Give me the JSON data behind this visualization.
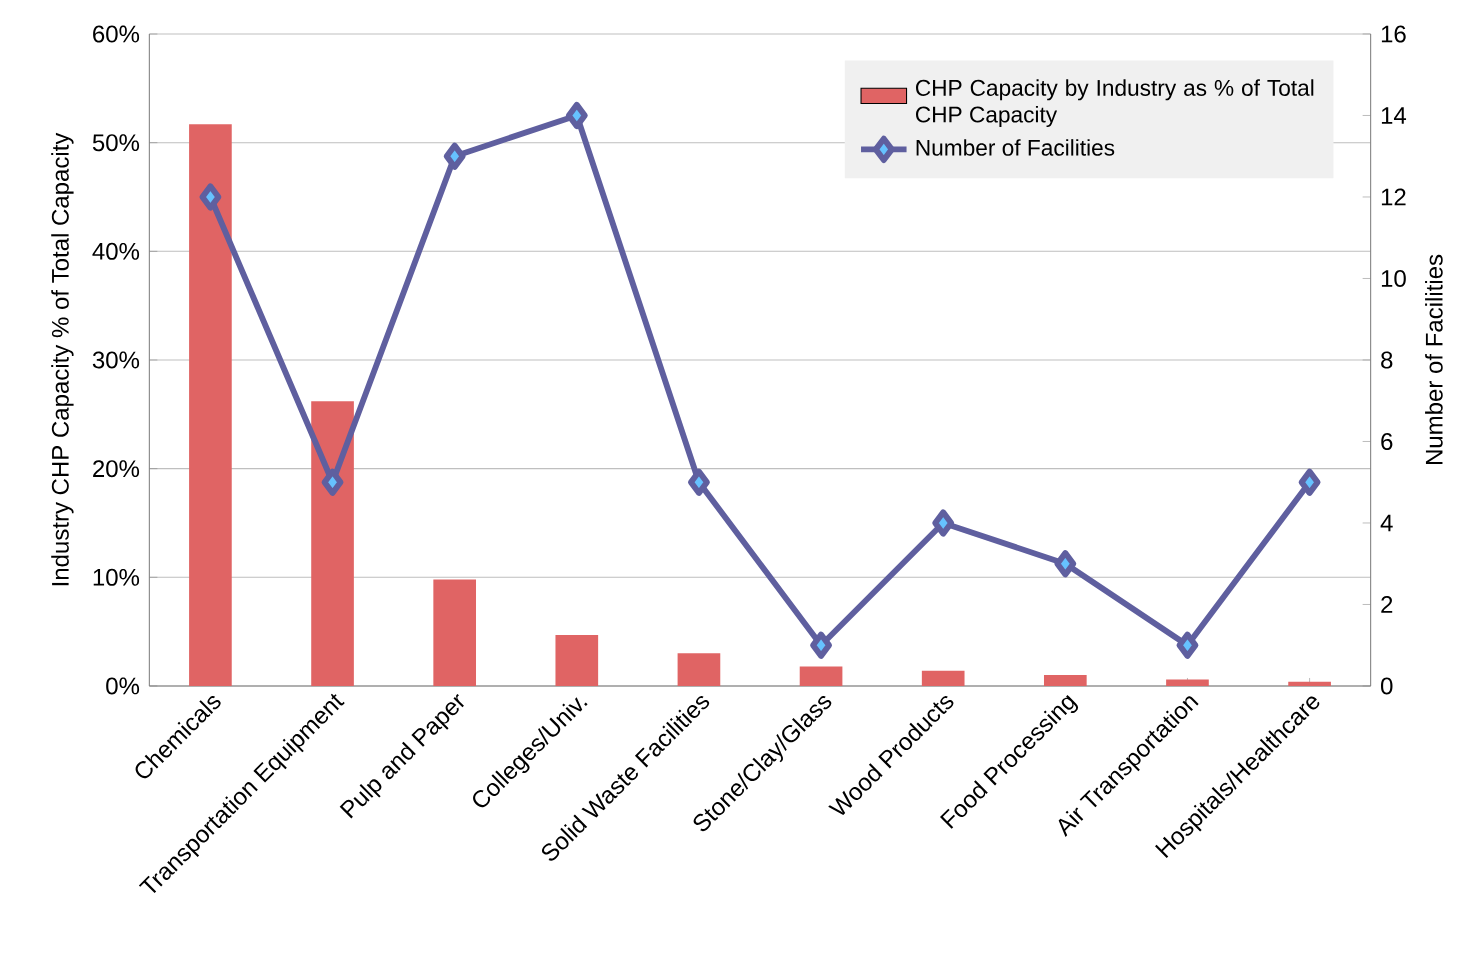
{
  "chart_data": {
    "type": "bar",
    "categories": [
      "Chemicals",
      "Transportation Equipment",
      "Pulp and Paper",
      "Colleges/Univ.",
      "Solid Waste Facilities",
      "Stone/Clay/Glass",
      "Wood Products",
      "Food Processing",
      "Air Transportation",
      "Hospitals/Healthcare"
    ],
    "series": [
      {
        "name": "CHP Capacity by Industry as % of Total CHP Capacity",
        "color": "#e06464",
        "values": [
          51.7,
          26.2,
          9.8,
          4.7,
          3.0,
          1.8,
          1.4,
          1.0,
          0.6,
          0.4
        ]
      },
      {
        "name": "Number of Facilities",
        "type": "line",
        "axis": "y2",
        "color": "#5f5f9f",
        "marker": "diamond",
        "values": [
          12,
          5,
          13,
          14,
          5,
          1,
          4,
          3,
          1,
          5
        ]
      }
    ],
    "ylabel": "Industry CHP Capacity % of Total Capacity",
    "y2label": "Number of Facilities",
    "ylim": [
      0,
      60
    ],
    "yticks": [
      {
        "value": 0,
        "label": "0%"
      },
      {
        "value": 10,
        "label": "10%"
      },
      {
        "value": 20,
        "label": "20%"
      },
      {
        "value": 30,
        "label": "30%"
      },
      {
        "value": 40,
        "label": "40%"
      },
      {
        "value": 50,
        "label": "50%"
      },
      {
        "value": 60,
        "label": "60%"
      }
    ],
    "y2lim": [
      0,
      16
    ],
    "y2ticks": [
      0,
      2,
      4,
      6,
      8,
      10,
      12,
      14,
      16
    ],
    "grid": "y",
    "legend": "top right"
  }
}
